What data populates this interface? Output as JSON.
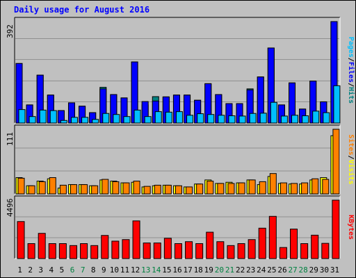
{
  "chart_data": {
    "type": "bar",
    "title": "Daily usage for August 2016",
    "x": [
      "1",
      "2",
      "3",
      "4",
      "5",
      "6",
      "7",
      "8",
      "9",
      "10",
      "11",
      "12",
      "13",
      "14",
      "15",
      "16",
      "17",
      "18",
      "19",
      "20",
      "21",
      "22",
      "23",
      "24",
      "25",
      "26",
      "27",
      "28",
      "29",
      "30",
      "31"
    ],
    "weekend_days": [
      "6",
      "7",
      "13",
      "14",
      "20",
      "21",
      "27",
      "28"
    ],
    "panels": [
      {
        "name": "top",
        "y_label_parts": [
          "Pages",
          "/",
          "Files",
          "/",
          "Hits"
        ],
        "y_label_colors": [
          "#00c0ff",
          "#000000",
          "#0000ff",
          "#000000",
          "#008080"
        ],
        "tick_label": "392",
        "ylim": [
          0,
          392
        ],
        "series": [
          {
            "name": "Hits",
            "color": "#008080",
            "values": [
              230,
              70,
              185,
              108,
              48,
              78,
              65,
              40,
              138,
              110,
              97,
              236,
              70,
              102,
              101,
              108,
              108,
              88,
              152,
              110,
              75,
              75,
              132,
              178,
              290,
              70,
              155,
              54,
              162,
              82,
              392
            ]
          },
          {
            "name": "Files",
            "color": "#0000ff",
            "values": [
              230,
              70,
              185,
              108,
              48,
              78,
              65,
              40,
              132,
              110,
              97,
              236,
              83,
              85,
              101,
              108,
              108,
              88,
              152,
              110,
              75,
              75,
              128,
              178,
              290,
              70,
              155,
              54,
              162,
              82,
              392
            ]
          },
          {
            "name": "Pages",
            "color": "#00c0ff",
            "values": [
              52,
              25,
              50,
              48,
              10,
              22,
              22,
              14,
              37,
              33,
              25,
              50,
              25,
              44,
              42,
              44,
              30,
              36,
              33,
              30,
              28,
              27,
              37,
              38,
              80,
              27,
              30,
              28,
              46,
              40,
              144
            ]
          }
        ]
      },
      {
        "name": "middle",
        "y_label_parts": [
          "Sites",
          "/",
          "Visits"
        ],
        "y_label_colors": [
          "#ff8000",
          "#000000",
          "#ffff00"
        ],
        "tick_label": "111",
        "ylim": [
          0,
          111
        ],
        "series": [
          {
            "name": "Visits",
            "color": "#ffff00",
            "values": [
              28,
              14,
              22,
              26,
              10,
              16,
              16,
              14,
              24,
              22,
              19,
              20,
              12,
              14,
              15,
              14,
              12,
              17,
              24,
              18,
              20,
              19,
              24,
              16,
              30,
              18,
              17,
              17,
              24,
              28,
              100
            ]
          },
          {
            "name": "Sites",
            "color": "#ff8000",
            "values": [
              27,
              14,
              21,
              28,
              15,
              16,
              16,
              14,
              25,
              21,
              19,
              22,
              13,
              15,
              15,
              14,
              12,
              17,
              22,
              18,
              18,
              19,
              24,
              21,
              35,
              19,
              18,
              19,
              26,
              25,
              111
            ]
          }
        ]
      },
      {
        "name": "bottom",
        "y_label_parts": [
          "KBytes"
        ],
        "y_label_colors": [
          "#ff0000"
        ],
        "tick_label": "4496",
        "ylim": [
          0,
          4496
        ],
        "series": [
          {
            "name": "KBytes",
            "color": "#ff0000",
            "values": [
              2850,
              1150,
              1940,
              1150,
              1150,
              1000,
              1150,
              1000,
              1780,
              1340,
              1460,
              2900,
              1200,
              1200,
              1560,
              1150,
              1300,
              1150,
              2030,
              1300,
              1000,
              1150,
              1460,
              2340,
              3250,
              850,
              2270,
              1150,
              1800,
              1170,
              4496
            ]
          }
        ]
      }
    ]
  }
}
